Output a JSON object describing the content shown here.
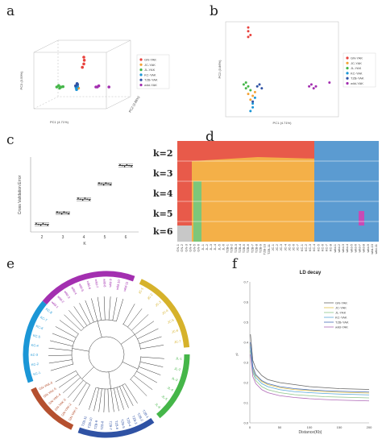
{
  "colors": {
    "GN-YAK": "#e8413c",
    "JC-YAK": "#f4a235",
    "JL-YAK": "#45b649",
    "KC-YAK": "#1b96d6",
    "TZB-YAK": "#2f52a4",
    "wild-YAK": "#a32fb0",
    "admix": [
      "#e85a4a",
      "#f4b048",
      "#5b9bd1",
      "#7dc67a",
      "#c84bb5",
      "#c8c8c8"
    ]
  },
  "panels": {
    "a": "a",
    "b": "b",
    "c": "c",
    "d": "d",
    "e": "e",
    "f": "f"
  },
  "pca3d": {
    "xlabel": "PC1 (4.71%)",
    "ylabel": "PC2 (3.86%)",
    "zlabel": "PC3 (3.59%)",
    "legend": [
      "GN-YAK",
      "JC-YAK",
      "JL-YAK",
      "KC-YAK",
      "TZB-YAK",
      "wild-YAK"
    ]
  },
  "pca2d": {
    "xlabel": "PC1 (4.71%)",
    "ylabel": "PC2 (3.86%)",
    "legend": [
      "GN-YAK",
      "JC-YAK",
      "JL-YAK",
      "KC-YAK",
      "TZB-YAK",
      "wild-YAK"
    ]
  },
  "chart_data": [
    {
      "type": "scatter",
      "panel": "a",
      "xlabel": "PC1 (4.71%)",
      "ylabel": "PC2 (3.86%)",
      "zlabel": "PC3 (3.59%)",
      "series": [
        {
          "name": "GN-YAK",
          "points": [
            [
              0.05,
              0.05,
              0.25
            ],
            [
              0.05,
              0.06,
              0.22
            ],
            [
              0.05,
              0.05,
              0.19
            ],
            [
              0.04,
              0.05,
              0.16
            ]
          ]
        },
        {
          "name": "JC-YAK",
          "points": [
            [
              0.02,
              0.0,
              0.02
            ],
            [
              0.02,
              0.01,
              0.0
            ],
            [
              0.03,
              0.0,
              -0.01
            ]
          ]
        },
        {
          "name": "JL-YAK",
          "points": [
            [
              -0.12,
              0.0,
              0.0
            ],
            [
              -0.11,
              0.01,
              0.01
            ],
            [
              -0.1,
              0.0,
              -0.01
            ],
            [
              -0.09,
              0.0,
              0.0
            ],
            [
              -0.08,
              0.01,
              0.0
            ]
          ]
        },
        {
          "name": "KC-YAK",
          "points": [
            [
              0.02,
              -0.02,
              0.0
            ],
            [
              0.02,
              -0.01,
              -0.02
            ],
            [
              0.03,
              -0.02,
              0.01
            ]
          ]
        },
        {
          "name": "TZB-YAK",
          "points": [
            [
              0.02,
              0.0,
              0.03
            ],
            [
              0.01,
              0.0,
              0.01
            ],
            [
              0.02,
              0.01,
              0.02
            ]
          ]
        },
        {
          "name": "wild-YAK",
          "points": [
            [
              0.15,
              0.0,
              0.0
            ],
            [
              0.16,
              0.0,
              0.0
            ],
            [
              0.17,
              0.0,
              0.01
            ],
            [
              0.24,
              0.0,
              0.0
            ]
          ]
        }
      ]
    },
    {
      "type": "scatter",
      "panel": "b",
      "xlabel": "PC1 (4.71%)",
      "ylabel": "PC2 (3.86%)",
      "xlim": [
        -0.1,
        0.4
      ],
      "ylim": [
        -0.15,
        0.35
      ],
      "series": [
        {
          "name": "GN-YAK",
          "points": [
            [
              0.0,
              0.32
            ],
            [
              0.01,
              0.28
            ],
            [
              0.0,
              0.27
            ],
            [
              0.0,
              0.3
            ]
          ]
        },
        {
          "name": "JC-YAK",
          "points": [
            [
              0.01,
              -0.06
            ],
            [
              0.02,
              -0.04
            ],
            [
              0.0,
              -0.03
            ],
            [
              0.03,
              -0.02
            ]
          ]
        },
        {
          "name": "JL-YAK",
          "points": [
            [
              -0.02,
              0.02
            ],
            [
              -0.01,
              0.03
            ],
            [
              -0.01,
              0.0
            ],
            [
              0.0,
              0.01
            ],
            [
              0.01,
              -0.01
            ]
          ]
        },
        {
          "name": "KC-YAK",
          "points": [
            [
              0.02,
              -0.1
            ],
            [
              0.01,
              -0.12
            ],
            [
              0.02,
              -0.08
            ],
            [
              0.03,
              -0.05
            ]
          ]
        },
        {
          "name": "TZB-YAK",
          "points": [
            [
              0.04,
              0.01
            ],
            [
              0.05,
              0.02
            ],
            [
              0.02,
              -0.07
            ],
            [
              0.06,
              0.0
            ]
          ]
        },
        {
          "name": "wild-YAK",
          "points": [
            [
              0.27,
              0.01
            ],
            [
              0.28,
              0.02
            ],
            [
              0.29,
              0.0
            ],
            [
              0.3,
              0.01
            ],
            [
              0.36,
              0.03
            ]
          ]
        }
      ]
    },
    {
      "type": "scatter",
      "panel": "c",
      "xlabel": "K",
      "ylabel": "Cross Validation Error",
      "categories": [
        "2",
        "3",
        "4",
        "5",
        "6"
      ],
      "values": [
        0.515,
        0.53,
        0.548,
        0.568,
        0.592
      ]
    },
    {
      "type": "bar",
      "panel": "d",
      "rows": [
        "k=2",
        "k=3",
        "k=4",
        "k=5",
        "k=6"
      ],
      "samples": [
        "GN-1",
        "GN-2",
        "GN-3",
        "GN-4",
        "GN-5",
        "GN-6",
        "JL-1",
        "JL-2",
        "JL-3",
        "JL-4",
        "JL-5",
        "JL-6",
        "TZB-1",
        "TZB-2",
        "TZB-3",
        "TZB-4",
        "TZB-5",
        "TZB-6",
        "TZB-7",
        "TZB-8",
        "TZB-9",
        "TZB-10",
        "TZB-11",
        "JC-1",
        "JC-2",
        "JC-3",
        "JC-4",
        "JC-5",
        "JC-6",
        "JC-7",
        "KC-1",
        "KC-2",
        "KC-3",
        "KC-4",
        "KC-5",
        "KC-6",
        "KC-7",
        "KC-8",
        "wild-1",
        "wild-2",
        "wild-3",
        "wild-4",
        "wild-5",
        "wild-6",
        "wild-7",
        "wild-8",
        "wild-9",
        "wild-10",
        "wild-11"
      ]
    },
    {
      "type": "line",
      "panel": "f",
      "title": "LD decay",
      "xlabel": "Distance(Kb)",
      "ylabel": "r²",
      "xlim": [
        0,
        200
      ],
      "ylim": [
        0,
        0.7
      ],
      "x_ticks": [
        0,
        50,
        100,
        150,
        200
      ],
      "y_ticks": [
        0.0,
        0.1,
        0.2,
        0.3,
        0.4,
        0.5,
        0.6,
        0.7
      ],
      "x": [
        1,
        5,
        10,
        20,
        30,
        50,
        75,
        100,
        125,
        150,
        175,
        200
      ],
      "series": [
        {
          "name": "GN-YAK",
          "values": [
            0.44,
            0.31,
            0.27,
            0.235,
            0.215,
            0.2,
            0.19,
            0.18,
            0.175,
            0.17,
            0.168,
            0.166
          ]
        },
        {
          "name": "JC-YAK",
          "values": [
            0.39,
            0.27,
            0.235,
            0.205,
            0.19,
            0.175,
            0.165,
            0.16,
            0.155,
            0.152,
            0.15,
            0.148
          ]
        },
        {
          "name": "JL-YAK",
          "values": [
            0.36,
            0.25,
            0.21,
            0.18,
            0.165,
            0.15,
            0.14,
            0.135,
            0.13,
            0.128,
            0.126,
            0.124
          ]
        },
        {
          "name": "KC-YAK",
          "values": [
            0.38,
            0.26,
            0.225,
            0.195,
            0.18,
            0.165,
            0.155,
            0.15,
            0.146,
            0.143,
            0.141,
            0.139
          ]
        },
        {
          "name": "TZB-YAK",
          "values": [
            0.4,
            0.28,
            0.24,
            0.21,
            0.195,
            0.18,
            0.17,
            0.164,
            0.16,
            0.157,
            0.155,
            0.153
          ]
        },
        {
          "name": "wild-YAK",
          "values": [
            0.34,
            0.23,
            0.195,
            0.165,
            0.15,
            0.135,
            0.126,
            0.12,
            0.116,
            0.113,
            0.111,
            0.109
          ]
        }
      ]
    }
  ],
  "admixture": {
    "k_labels": [
      "k=2",
      "k=3",
      "k=4",
      "k=5",
      "k=6"
    ]
  },
  "tree": {
    "groups": [
      {
        "name": "KC-YAK",
        "labels": [
          "KC-1",
          "KC-2",
          "KC-3",
          "KC-4",
          "KC-5",
          "KC-6",
          "KC-7",
          "KC-8"
        ]
      },
      {
        "name": "wild-YAK",
        "labels": [
          "wild-1",
          "wild-2",
          "wild-3",
          "wild-4",
          "wild-5",
          "wild-6",
          "wild-7",
          "wild-8",
          "wild-9",
          "wild-10",
          "wild-11"
        ]
      },
      {
        "name": "JC-YAK",
        "labels": [
          "JC-1",
          "JC-2",
          "JC-3",
          "JC-4",
          "JC-5",
          "JC-6",
          "JC-7"
        ]
      },
      {
        "name": "JL-YAK",
        "labels": [
          "JL-1",
          "JL-2",
          "JL-3",
          "JL-4",
          "JL-5",
          "JL-6"
        ]
      },
      {
        "name": "TZB-YAK",
        "labels": [
          "TZB-1",
          "TZB-2",
          "TZB-3",
          "TZB-4",
          "TZB-5",
          "TZB-6",
          "TZB-7",
          "TZB-8",
          "TZB-9",
          "TZB-10",
          "TZB-11"
        ]
      },
      {
        "name": "GN-YAK",
        "labels": [
          "GN-YAK-1",
          "GN-YAK-2",
          "GN-YAK-3",
          "GN-YAK-4",
          "GN-YAK-5",
          "GN-YAK-6"
        ]
      }
    ]
  }
}
